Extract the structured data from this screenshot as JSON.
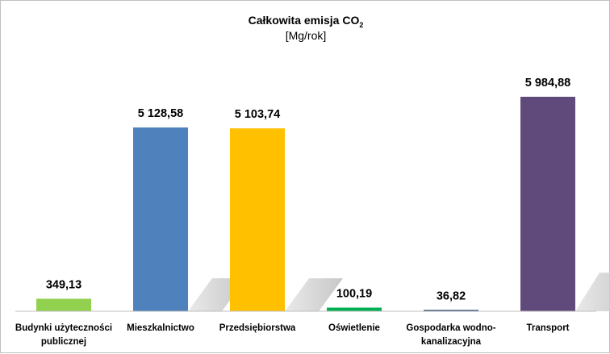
{
  "chart_data": {
    "type": "bar",
    "title": {
      "main": "Całkowita emisja CO",
      "subscript": "2"
    },
    "subtitle": "[Mg/rok]",
    "categories": [
      [
        "Budynki użyteczności",
        "publicznej"
      ],
      [
        "Mieszkalnictwo"
      ],
      [
        "Przedsiębiorstwa"
      ],
      [
        "Oświetlenie"
      ],
      [
        "Gospodarka wodno-",
        "kanalizacyjna"
      ],
      [
        "Transport"
      ]
    ],
    "values": [
      349.13,
      5128.58,
      5103.74,
      100.19,
      36.82,
      5984.88
    ],
    "value_labels": [
      "349,13",
      "5 128,58",
      "5 103,74",
      "100,19",
      "36,82",
      "5 984,88"
    ],
    "colors": [
      "#92d050",
      "#4f81bd",
      "#ffc000",
      "#00b050",
      "#1f3864",
      "#604a7b"
    ],
    "ylim": [
      0,
      6000
    ],
    "grid": false,
    "legend": "none"
  }
}
